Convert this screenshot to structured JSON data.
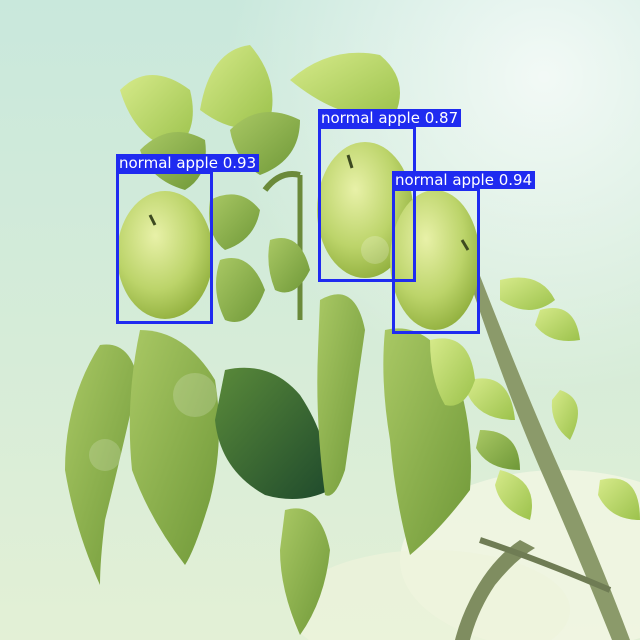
{
  "colors": {
    "box": "#1f2bf0",
    "label_text": "#ffffff",
    "sky": "#c9e8dc"
  },
  "detections": [
    {
      "label": "normal apple 0.93",
      "class": "normal apple",
      "confidence": 0.93
    },
    {
      "label": "normal apple 0.87",
      "class": "normal apple",
      "confidence": 0.87
    },
    {
      "label": "normal apple 0.94",
      "class": "normal apple",
      "confidence": 0.94
    }
  ]
}
